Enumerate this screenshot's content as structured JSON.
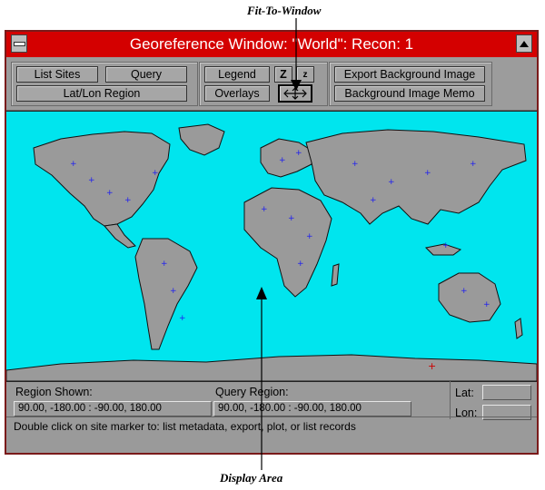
{
  "annotations": {
    "fit_to_window": "Fit-To-Window",
    "display_area": "Display Area"
  },
  "window": {
    "title": "Georeference Window: \"World\": Recon: 1"
  },
  "toolbar": {
    "list_sites": "List Sites",
    "query": "Query",
    "latlon_region": "Lat/Lon Region",
    "legend": "Legend",
    "zoom_in": "Z",
    "zoom_out": "z",
    "overlays": "Overlays",
    "export_background": "Export Background Image",
    "background_memo": "Background Image Memo"
  },
  "bottom": {
    "region_shown_label": "Region Shown:",
    "region_shown_value": "90.00, -180.00 : -90.00, 180.00",
    "query_region_label": "Query Region:",
    "query_region_value": "90.00, -180.00 : -90.00, 180.00",
    "lat_label": "Lat:",
    "lat_value": "",
    "lon_label": "Lon:",
    "lon_value": ""
  },
  "status": "Double click on site marker to: list metadata, export, plot, or list records",
  "colors": {
    "titlebar": "#d40000",
    "ocean": "#00e5ee",
    "land": "#9a9a9a",
    "site_marker": "#1e1ef0"
  },
  "icons": {
    "minimize": "minimize-icon",
    "maximize": "maximize-icon",
    "fit_to_window": "fit-to-window-icon"
  }
}
